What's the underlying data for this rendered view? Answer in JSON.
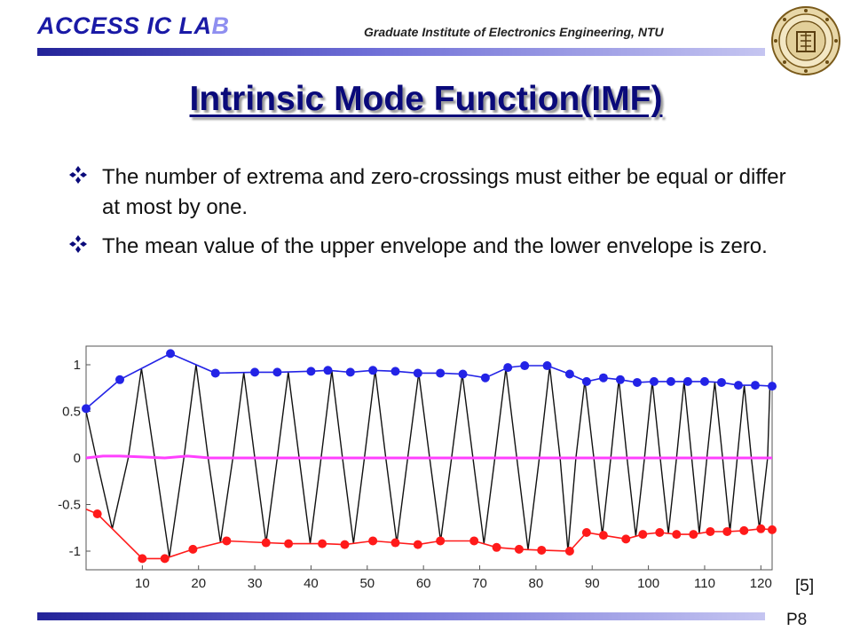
{
  "header": {
    "lab_name_main": "ACCESS IC LA",
    "lab_name_fade": "B",
    "institute": "Graduate Institute of Electronics Engineering, NTU",
    "seal_icon": "university-seal-icon"
  },
  "slide": {
    "title": "Intrinsic Mode Function(IMF)",
    "bullets": [
      "The number of extrema and zero-crossings must either be equal or differ at most by one.",
      "The mean value of the upper envelope and the lower envelope is zero."
    ],
    "bullet_icon": "four-diamond-bullet-icon",
    "reference": "[5]",
    "page_number": "P8"
  },
  "colors": {
    "title": "#0a0a7a",
    "lab_name": "#1a1aa6",
    "upper_envelope": "#2323e6",
    "lower_envelope": "#ff1a1a",
    "mean": "#ff40ff",
    "signal": "#111111"
  },
  "chart_data": {
    "type": "line",
    "title": "",
    "xlabel": "",
    "ylabel": "",
    "xlim": [
      0,
      122
    ],
    "ylim": [
      -1.2,
      1.2
    ],
    "x_ticks": [
      10,
      20,
      30,
      40,
      50,
      60,
      70,
      80,
      90,
      100,
      110,
      120
    ],
    "y_ticks": [
      1,
      0.5,
      0,
      -0.5,
      -1
    ],
    "y_tick_labels": [
      "1",
      "0.5",
      "0",
      "-0.5",
      "-1"
    ],
    "grid": false,
    "legend": "none",
    "signal_zero_crossings": [
      1.8,
      7.5,
      12.2,
      17.4,
      21.7,
      26.1,
      30.0,
      34.0,
      37.9,
      41.8,
      45.6,
      49.5,
      53.3,
      57.2,
      61.1,
      65.0,
      68.8,
      72.7,
      76.6,
      80.6,
      84.3,
      87.1,
      90.3,
      93.3,
      96.2,
      99.3,
      102.1,
      105.0,
      107.7,
      110.4,
      113.2,
      115.8,
      118.3,
      121.2
    ],
    "series": [
      {
        "x": [
          0,
          6,
          15,
          23,
          30,
          34,
          40,
          43,
          47,
          51,
          55,
          59,
          63,
          67,
          71,
          75,
          78,
          82,
          86,
          89,
          92,
          95,
          98,
          101,
          104,
          107,
          110,
          113,
          116,
          119,
          122
        ],
        "values": [
          0.53,
          0.84,
          1.12,
          0.91,
          0.92,
          0.92,
          0.93,
          0.94,
          0.92,
          0.94,
          0.93,
          0.91,
          0.91,
          0.9,
          0.86,
          0.97,
          0.99,
          0.99,
          0.9,
          0.82,
          0.86,
          0.84,
          0.81,
          0.82,
          0.82,
          0.82,
          0.82,
          0.81,
          0.78,
          0.78,
          0.77
        ],
        "markers": [
          0,
          1,
          2,
          3,
          4,
          5,
          6,
          7,
          8,
          9,
          10,
          11,
          12,
          13,
          14,
          15,
          16,
          17,
          18,
          19,
          20,
          21,
          22,
          23,
          24,
          25,
          26,
          27,
          28,
          29,
          30
        ]
      },
      {
        "x": [
          0,
          2,
          10,
          14,
          19,
          25,
          32,
          36,
          42,
          46,
          51,
          55,
          59,
          63,
          69,
          73,
          77,
          81,
          86,
          89,
          92,
          96,
          99,
          102,
          105,
          108,
          111,
          114,
          117,
          120,
          122
        ],
        "values": [
          -0.55,
          -0.6,
          -1.08,
          -1.08,
          -0.98,
          -0.89,
          -0.91,
          -0.92,
          -0.92,
          -0.93,
          -0.89,
          -0.91,
          -0.93,
          -0.89,
          -0.89,
          -0.96,
          -0.98,
          -0.99,
          -1.0,
          -0.8,
          -0.83,
          -0.87,
          -0.82,
          -0.8,
          -0.82,
          -0.82,
          -0.79,
          -0.79,
          -0.78,
          -0.76,
          -0.77
        ],
        "markers": [
          1,
          2,
          3,
          4,
          5,
          6,
          7,
          8,
          9,
          10,
          11,
          12,
          13,
          14,
          15,
          16,
          17,
          18,
          19,
          20,
          21,
          22,
          23,
          24,
          25,
          26,
          27,
          28,
          29,
          30
        ]
      },
      {
        "x": [
          0,
          3,
          6,
          10,
          14,
          18,
          22,
          40,
          60,
          80,
          100,
          122
        ],
        "values": [
          0.0,
          0.02,
          0.02,
          0.01,
          0.0,
          0.02,
          0.0,
          0.0,
          0.0,
          0.0,
          0.0,
          0.0
        ]
      }
    ]
  }
}
